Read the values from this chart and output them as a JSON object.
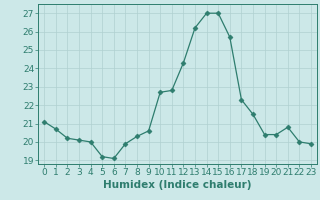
{
  "x": [
    0,
    1,
    2,
    3,
    4,
    5,
    6,
    7,
    8,
    9,
    10,
    11,
    12,
    13,
    14,
    15,
    16,
    17,
    18,
    19,
    20,
    21,
    22,
    23
  ],
  "y": [
    21.1,
    20.7,
    20.2,
    20.1,
    20.0,
    19.2,
    19.1,
    19.9,
    20.3,
    20.6,
    22.7,
    22.8,
    24.3,
    26.2,
    27.0,
    27.0,
    25.7,
    22.3,
    21.5,
    20.4,
    20.4,
    20.8,
    20.0,
    19.9
  ],
  "line_color": "#2e7d6e",
  "marker": "D",
  "marker_size": 2.5,
  "bg_color": "#cce8e8",
  "grid_color": "#b0d0d0",
  "xlabel": "Humidex (Indice chaleur)",
  "ylim": [
    18.8,
    27.5
  ],
  "xlim": [
    -0.5,
    23.5
  ],
  "yticks": [
    19,
    20,
    21,
    22,
    23,
    24,
    25,
    26,
    27
  ],
  "xticks": [
    0,
    1,
    2,
    3,
    4,
    5,
    6,
    7,
    8,
    9,
    10,
    11,
    12,
    13,
    14,
    15,
    16,
    17,
    18,
    19,
    20,
    21,
    22,
    23
  ],
  "axis_color": "#2e7d6e",
  "tick_color": "#2e7d6e",
  "xlabel_fontsize": 7.5,
  "tick_fontsize": 6.5,
  "ytick_fontsize": 6.5
}
